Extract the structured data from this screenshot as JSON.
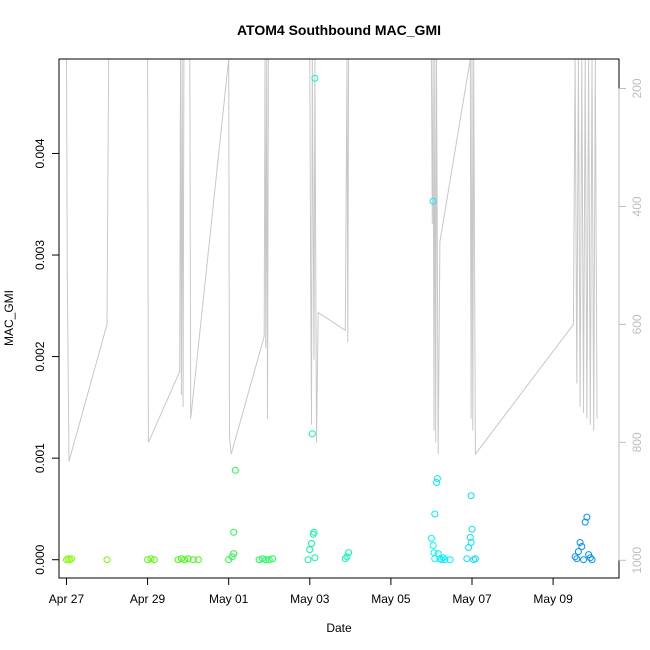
{
  "chart_data": {
    "type": "scatter",
    "title": "ATOM4 Southbound MAC_GMI",
    "xlabel": "Date",
    "ylabel": "MAC_GMI",
    "xlim": [
      "2023-04-26T19:35",
      "2023-05-10T15:00"
    ],
    "ylim": [
      -0.00018,
      0.00493
    ],
    "x_ticks": [
      {
        "label": "Apr 27",
        "date": "2023-04-27"
      },
      {
        "label": "Apr 29",
        "date": "2023-04-29"
      },
      {
        "label": "May 01",
        "date": "2023-05-01"
      },
      {
        "label": "May 03",
        "date": "2023-05-03"
      },
      {
        "label": "May 05",
        "date": "2023-05-05"
      },
      {
        "label": "May 07",
        "date": "2023-05-07"
      },
      {
        "label": "May 09",
        "date": "2023-05-09"
      }
    ],
    "y_ticks": [
      {
        "label": "0.000",
        "value": 0.0
      },
      {
        "label": "0.001",
        "value": 0.001
      },
      {
        "label": "0.002",
        "value": 0.002
      },
      {
        "label": "0.003",
        "value": 0.003
      },
      {
        "label": "0.004",
        "value": 0.004
      }
    ],
    "right_axis": {
      "color": "#bebebe",
      "reversed": true,
      "lim": [
        1030,
        150
      ],
      "ticks": [
        {
          "label": "200",
          "value": 200
        },
        {
          "label": "400",
          "value": 400
        },
        {
          "label": "600",
          "value": 600
        },
        {
          "label": "800",
          "value": 800
        },
        {
          "label": "1000",
          "value": 1000
        }
      ]
    },
    "grid": false,
    "legend": "none",
    "point_style": "open-circle",
    "points": [
      {
        "x": "2023-04-27T00:00",
        "y": 0.0,
        "color": "#80ff00"
      },
      {
        "x": "2023-04-27T01:00",
        "y": 1e-05,
        "color": "#80ff00"
      },
      {
        "x": "2023-04-27T02:00",
        "y": 0.0,
        "color": "#80ff00"
      },
      {
        "x": "2023-04-27T03:00",
        "y": 1e-05,
        "color": "#80ff00"
      },
      {
        "x": "2023-04-28T00:00",
        "y": 0.0,
        "color": "#6dff00"
      },
      {
        "x": "2023-04-29T00:00",
        "y": 0.0,
        "color": "#55ff00"
      },
      {
        "x": "2023-04-29T02:00",
        "y": 1e-05,
        "color": "#55ff00"
      },
      {
        "x": "2023-04-29T04:00",
        "y": 0.0,
        "color": "#55ff00"
      },
      {
        "x": "2023-04-29T18:00",
        "y": 0.0,
        "color": "#40ff00"
      },
      {
        "x": "2023-04-29T20:00",
        "y": 1e-05,
        "color": "#40ff00"
      },
      {
        "x": "2023-04-29T22:00",
        "y": 0.0,
        "color": "#40ff00"
      },
      {
        "x": "2023-04-30T00:00",
        "y": 1e-05,
        "color": "#3aff10"
      },
      {
        "x": "2023-04-30T03:00",
        "y": 0.0,
        "color": "#3aff10"
      },
      {
        "x": "2023-04-30T06:00",
        "y": 0.0,
        "color": "#3aff10"
      },
      {
        "x": "2023-05-01T00:00",
        "y": 0.0,
        "color": "#20ff40"
      },
      {
        "x": "2023-05-01T02:00",
        "y": 3e-05,
        "color": "#20ff40"
      },
      {
        "x": "2023-05-01T03:00",
        "y": 6e-05,
        "color": "#20ff40"
      },
      {
        "x": "2023-05-01T03:00",
        "y": 0.00027,
        "color": "#20ff40"
      },
      {
        "x": "2023-05-01T04:00",
        "y": 0.00088,
        "color": "#20ff40"
      },
      {
        "x": "2023-05-01T18:00",
        "y": 0.0,
        "color": "#10ff50"
      },
      {
        "x": "2023-05-01T20:00",
        "y": 1e-05,
        "color": "#10ff50"
      },
      {
        "x": "2023-05-01T22:00",
        "y": 0.0,
        "color": "#10ff50"
      },
      {
        "x": "2023-05-02T00:00",
        "y": 0.0,
        "color": "#10ff50"
      },
      {
        "x": "2023-05-02T02:00",
        "y": 1e-05,
        "color": "#10ff50"
      },
      {
        "x": "2023-05-02T23:00",
        "y": 0.0,
        "color": "#00ff90"
      },
      {
        "x": "2023-05-03T00:00",
        "y": 0.0001,
        "color": "#00ff90"
      },
      {
        "x": "2023-05-03T01:00",
        "y": 0.00016,
        "color": "#00ff99"
      },
      {
        "x": "2023-05-03T02:00",
        "y": 0.00025,
        "color": "#00ffa0"
      },
      {
        "x": "2023-05-03T02:30",
        "y": 0.00027,
        "color": "#00ffa0"
      },
      {
        "x": "2023-05-03T03:00",
        "y": 2e-05,
        "color": "#00ffa0"
      },
      {
        "x": "2023-05-03T01:30",
        "y": 0.00124,
        "color": "#00ffa0"
      },
      {
        "x": "2023-05-03T03:00",
        "y": 0.00474,
        "color": "#00ffc0"
      },
      {
        "x": "2023-05-03T21:00",
        "y": 1e-05,
        "color": "#00ffb0"
      },
      {
        "x": "2023-05-03T22:00",
        "y": 3e-05,
        "color": "#00ffb0"
      },
      {
        "x": "2023-05-03T23:00",
        "y": 7e-05,
        "color": "#00ffb0"
      },
      {
        "x": "2023-05-06T00:00",
        "y": 0.00021,
        "color": "#00fff0"
      },
      {
        "x": "2023-05-06T01:00",
        "y": 0.00014,
        "color": "#00fff0"
      },
      {
        "x": "2023-05-06T01:30",
        "y": 7e-05,
        "color": "#00fff0"
      },
      {
        "x": "2023-05-06T02:00",
        "y": 1e-05,
        "color": "#00fff0"
      },
      {
        "x": "2023-05-06T01:00",
        "y": 0.00353,
        "color": "#00f0ff"
      },
      {
        "x": "2023-05-06T03:00",
        "y": 0.00076,
        "color": "#00f0ff"
      },
      {
        "x": "2023-05-06T03:30",
        "y": 0.0008,
        "color": "#00f0ff"
      },
      {
        "x": "2023-05-06T02:00",
        "y": 0.00045,
        "color": "#00f0ff"
      },
      {
        "x": "2023-05-06T04:00",
        "y": 6e-05,
        "color": "#00f0ff"
      },
      {
        "x": "2023-05-06T05:00",
        "y": 1e-05,
        "color": "#00f0ff"
      },
      {
        "x": "2023-05-06T06:00",
        "y": 0.0,
        "color": "#00f0ff"
      },
      {
        "x": "2023-05-06T07:00",
        "y": 2e-05,
        "color": "#00f0ff"
      },
      {
        "x": "2023-05-06T08:00",
        "y": 0.0,
        "color": "#00f0ff"
      },
      {
        "x": "2023-05-06T11:00",
        "y": 0.0,
        "color": "#00f0ff"
      },
      {
        "x": "2023-05-06T21:00",
        "y": 1e-05,
        "color": "#00e8ff"
      },
      {
        "x": "2023-05-06T22:00",
        "y": 0.00012,
        "color": "#00e8ff"
      },
      {
        "x": "2023-05-06T23:00",
        "y": 0.00022,
        "color": "#00e8ff"
      },
      {
        "x": "2023-05-06T23:30",
        "y": 0.00017,
        "color": "#00e8ff"
      },
      {
        "x": "2023-05-07T00:00",
        "y": 0.0003,
        "color": "#00e0ff"
      },
      {
        "x": "2023-05-06T23:30",
        "y": 0.00063,
        "color": "#00e0ff"
      },
      {
        "x": "2023-05-07T01:00",
        "y": 0.0,
        "color": "#00e0ff"
      },
      {
        "x": "2023-05-07T02:00",
        "y": 1e-05,
        "color": "#00e0ff"
      },
      {
        "x": "2023-05-09T13:00",
        "y": 3e-05,
        "color": "#0090ff"
      },
      {
        "x": "2023-05-09T14:00",
        "y": 1e-05,
        "color": "#0090ff"
      },
      {
        "x": "2023-05-09T15:00",
        "y": 8e-05,
        "color": "#0090ff"
      },
      {
        "x": "2023-05-09T16:00",
        "y": 0.00017,
        "color": "#0090ff"
      },
      {
        "x": "2023-05-09T17:00",
        "y": 0.00013,
        "color": "#0090ff"
      },
      {
        "x": "2023-05-09T18:00",
        "y": 0.0,
        "color": "#0090ff"
      },
      {
        "x": "2023-05-09T19:00",
        "y": 0.00037,
        "color": "#0090ff"
      },
      {
        "x": "2023-05-09T20:00",
        "y": 0.00042,
        "color": "#0090ff"
      },
      {
        "x": "2023-05-09T21:00",
        "y": 5e-05,
        "color": "#0090ff"
      },
      {
        "x": "2023-05-09T22:00",
        "y": 2e-05,
        "color": "#0090ff"
      },
      {
        "x": "2023-05-09T23:00",
        "y": 0.0,
        "color": "#0090ff"
      }
    ],
    "depth_trace": {
      "color": "#c8c8c8",
      "axis": "right",
      "points": [
        [
          "2023-04-27T00:00",
          150
        ],
        [
          "2023-04-27T00:30",
          518
        ],
        [
          "2023-04-27T01:30",
          832
        ],
        [
          "2023-04-28T00:00",
          600
        ],
        [
          "2023-04-28T00:30",
          348
        ],
        [
          "2023-04-28T01:00",
          150
        ],
        [
          "2023-04-29T00:00",
          150
        ],
        [
          "2023-04-29T00:30",
          800
        ],
        [
          "2023-04-29T19:00",
          680
        ],
        [
          "2023-04-29T19:30",
          150
        ],
        [
          "2023-04-29T20:00",
          720
        ],
        [
          "2023-04-29T20:30",
          150
        ],
        [
          "2023-04-29T21:00",
          740
        ],
        [
          "2023-04-29T21:30",
          150
        ],
        [
          "2023-04-30T01:00",
          150
        ],
        [
          "2023-04-30T01:30",
          760
        ],
        [
          "2023-05-01T00:00",
          150
        ],
        [
          "2023-05-01T00:30",
          790
        ],
        [
          "2023-05-01T01:30",
          820
        ],
        [
          "2023-05-01T21:00",
          620
        ],
        [
          "2023-05-01T21:30",
          150
        ],
        [
          "2023-05-01T22:00",
          640
        ],
        [
          "2023-05-01T22:30",
          150
        ],
        [
          "2023-05-01T23:00",
          760
        ],
        [
          "2023-05-01T23:30",
          150
        ],
        [
          "2023-05-03T00:00",
          150
        ],
        [
          "2023-05-03T00:30",
          500
        ],
        [
          "2023-05-03T01:00",
          770
        ],
        [
          "2023-05-03T01:30",
          150
        ],
        [
          "2023-05-03T02:30",
          660
        ],
        [
          "2023-05-03T03:00",
          150
        ],
        [
          "2023-05-03T04:00",
          800
        ],
        [
          "2023-05-03T05:00",
          580
        ],
        [
          "2023-05-03T21:00",
          610
        ],
        [
          "2023-05-03T22:00",
          150
        ],
        [
          "2023-05-03T22:30",
          630
        ],
        [
          "2023-05-03T23:00",
          150
        ],
        [
          "2023-05-06T00:00",
          150
        ],
        [
          "2023-05-06T00:30",
          430
        ],
        [
          "2023-05-06T01:00",
          150
        ],
        [
          "2023-05-06T01:30",
          780
        ],
        [
          "2023-05-06T02:00",
          150
        ],
        [
          "2023-05-06T02:30",
          800
        ],
        [
          "2023-05-06T03:00",
          150
        ],
        [
          "2023-05-06T04:00",
          820
        ],
        [
          "2023-05-06T05:00",
          460
        ],
        [
          "2023-05-06T23:00",
          150
        ],
        [
          "2023-05-06T23:30",
          760
        ],
        [
          "2023-05-07T00:00",
          150
        ],
        [
          "2023-05-07T00:30",
          780
        ],
        [
          "2023-05-07T01:00",
          150
        ],
        [
          "2023-05-07T02:00",
          820
        ],
        [
          "2023-05-09T12:00",
          600
        ],
        [
          "2023-05-09T13:00",
          150
        ],
        [
          "2023-05-09T14:00",
          700
        ],
        [
          "2023-05-09T15:00",
          150
        ],
        [
          "2023-05-09T16:00",
          740
        ],
        [
          "2023-05-09T17:00",
          150
        ],
        [
          "2023-05-09T18:00",
          750
        ],
        [
          "2023-05-09T19:00",
          150
        ],
        [
          "2023-05-09T20:00",
          760
        ],
        [
          "2023-05-09T21:00",
          150
        ],
        [
          "2023-05-09T22:00",
          770
        ],
        [
          "2023-05-09T23:00",
          150
        ],
        [
          "2023-05-10T00:00",
          780
        ],
        [
          "2023-05-10T01:00",
          150
        ],
        [
          "2023-05-10T02:00",
          760
        ]
      ]
    }
  }
}
